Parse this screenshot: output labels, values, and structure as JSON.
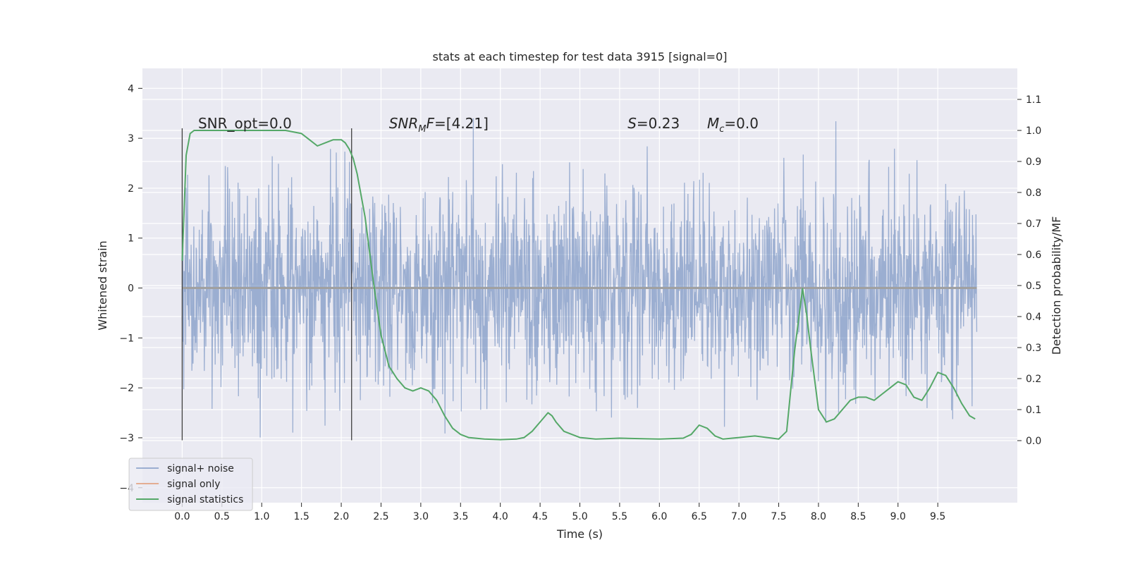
{
  "chart_data": {
    "type": "line",
    "title": "stats at each timestep for test data 3915 [signal=0]",
    "xlabel": "Time (s)",
    "ylabel_left": "Whitened strain",
    "ylabel_right": "Detection probability/MF",
    "xlim": [
      -0.5,
      10.5
    ],
    "ylim_left": [
      -4.3,
      4.4
    ],
    "ylim_right": [
      -0.2,
      1.2
    ],
    "x_ticks": [
      0.0,
      0.5,
      1.0,
      1.5,
      2.0,
      2.5,
      3.0,
      3.5,
      4.0,
      4.5,
      5.0,
      5.5,
      6.0,
      6.5,
      7.0,
      7.5,
      8.0,
      8.5,
      9.0,
      9.5
    ],
    "x_tick_labels": [
      "0.0",
      "0.5",
      "1.0",
      "1.5",
      "2.0",
      "2.5",
      "3.0",
      "3.5",
      "4.0",
      "4.5",
      "5.0",
      "5.5",
      "6.0",
      "6.5",
      "7.0",
      "7.5",
      "8.0",
      "8.5",
      "9.0",
      "9.5"
    ],
    "y_left_ticks": [
      -4,
      -3,
      -2,
      -1,
      0,
      1,
      2,
      3,
      4
    ],
    "y_left_tick_labels": [
      "−4",
      "−3",
      "−2",
      "−1",
      "0",
      "1",
      "2",
      "3",
      "4"
    ],
    "y_right_ticks": [
      0.0,
      0.1,
      0.2,
      0.3,
      0.4,
      0.5,
      0.6,
      0.7,
      0.8,
      0.9,
      1.0,
      1.1
    ],
    "y_right_tick_labels": [
      "0.0",
      "0.1",
      "0.2",
      "0.3",
      "0.4",
      "0.5",
      "0.6",
      "0.7",
      "0.8",
      "0.9",
      "1.0",
      "1.1"
    ],
    "grid": true,
    "legend_position": "bottom-left",
    "annotations": [
      {
        "html": "SNR_opt=0.0",
        "x": 0.2
      },
      {
        "html": "<tspan font-style='italic'>SNR</tspan><tspan font-style='italic' font-size='13' dy='5'>M</tspan><tspan font-style='italic' dy='-5'>F</tspan>=[4.21]",
        "x": 2.6
      },
      {
        "html": "<tspan font-style='italic'>S</tspan>=0.23",
        "x": 5.6
      },
      {
        "html": "<tspan font-style='italic'>M</tspan><tspan font-style='italic' font-size='13' dy='5'>c</tspan><tspan dy='-5'>=0.0</tspan>",
        "x": 6.6
      }
    ],
    "annotation_y": 3.2,
    "vertical_markers": [
      {
        "x": 0.0,
        "y_range": [
          -3.05,
          3.2
        ]
      },
      {
        "x": 2.13,
        "y_range": [
          -3.05,
          3.2
        ]
      }
    ],
    "series": [
      {
        "name": "signal+ noise",
        "axis": "left",
        "color": "#4c72b0",
        "opacity": 0.5,
        "x_range": [
          0.0,
          9.99
        ],
        "noise_sigma": 1.0,
        "sample_count": 2048
      },
      {
        "name": "signal only",
        "axis": "left",
        "color": "#dd8452",
        "opacity": 0.6,
        "x": [
          0.0,
          9.99
        ],
        "y": [
          0.0,
          0.0
        ]
      },
      {
        "name": "signal statistics",
        "axis": "right",
        "color": "#55a868",
        "x": [
          0.0,
          0.05,
          0.1,
          0.15,
          0.2,
          0.3,
          0.5,
          1.0,
          1.3,
          1.5,
          1.6,
          1.7,
          1.8,
          1.9,
          2.0,
          2.05,
          2.1,
          2.15,
          2.2,
          2.3,
          2.4,
          2.5,
          2.6,
          2.7,
          2.8,
          2.9,
          3.0,
          3.1,
          3.2,
          3.3,
          3.4,
          3.5,
          3.6,
          3.8,
          4.0,
          4.2,
          4.3,
          4.4,
          4.5,
          4.6,
          4.65,
          4.7,
          4.8,
          5.0,
          5.2,
          5.5,
          6.0,
          6.3,
          6.4,
          6.5,
          6.6,
          6.7,
          6.8,
          7.0,
          7.2,
          7.5,
          7.6,
          7.7,
          7.8,
          7.85,
          7.9,
          8.0,
          8.1,
          8.2,
          8.3,
          8.4,
          8.5,
          8.6,
          8.7,
          8.8,
          8.9,
          9.0,
          9.1,
          9.2,
          9.3,
          9.4,
          9.5,
          9.6,
          9.7,
          9.8,
          9.9,
          9.97
        ],
        "y": [
          0.58,
          0.92,
          0.99,
          1.0,
          1.0,
          1.0,
          1.0,
          1.0,
          1.0,
          0.99,
          0.97,
          0.95,
          0.96,
          0.97,
          0.97,
          0.96,
          0.94,
          0.91,
          0.86,
          0.72,
          0.52,
          0.34,
          0.24,
          0.2,
          0.17,
          0.16,
          0.17,
          0.16,
          0.13,
          0.08,
          0.04,
          0.02,
          0.01,
          0.005,
          0.003,
          0.005,
          0.01,
          0.03,
          0.06,
          0.09,
          0.08,
          0.06,
          0.03,
          0.01,
          0.005,
          0.008,
          0.005,
          0.008,
          0.02,
          0.05,
          0.04,
          0.015,
          0.005,
          0.01,
          0.015,
          0.005,
          0.03,
          0.29,
          0.49,
          0.41,
          0.3,
          0.1,
          0.06,
          0.07,
          0.1,
          0.13,
          0.14,
          0.14,
          0.13,
          0.15,
          0.17,
          0.19,
          0.18,
          0.14,
          0.13,
          0.17,
          0.22,
          0.21,
          0.17,
          0.12,
          0.08,
          0.07
        ]
      }
    ],
    "colors": {
      "plot_background": "#eaeaf2",
      "grid": "#ffffff",
      "marker_line": "#404040"
    }
  }
}
